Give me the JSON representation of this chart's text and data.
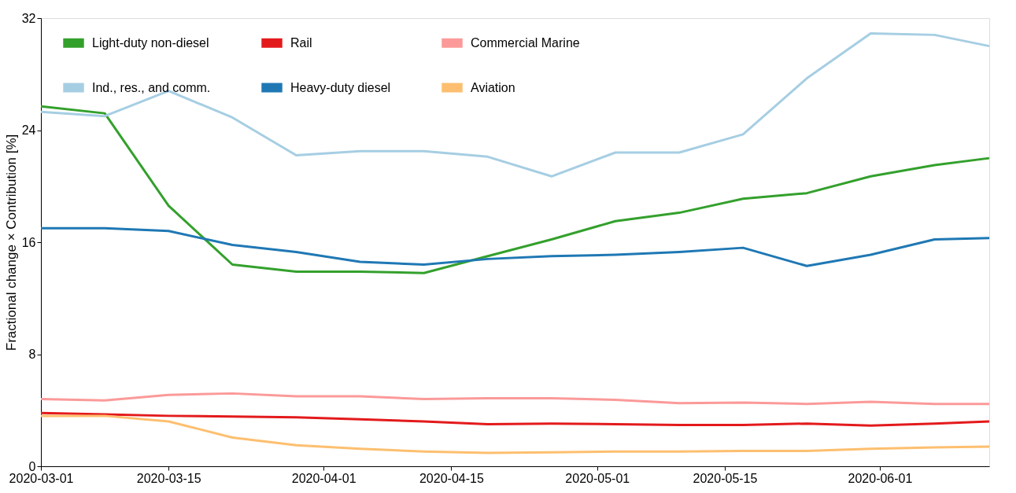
{
  "chart_data": {
    "type": "line",
    "ylabel": "Fractional change × Contribution [%]",
    "x": [
      "2020-03-01",
      "2020-03-08",
      "2020-03-15",
      "2020-03-22",
      "2020-03-29",
      "2020-04-05",
      "2020-04-12",
      "2020-04-19",
      "2020-04-26",
      "2020-05-03",
      "2020-05-10",
      "2020-05-17",
      "2020-05-24",
      "2020-05-31",
      "2020-06-07",
      "2020-06-13"
    ],
    "series": [
      {
        "name": "Light-duty non-diesel",
        "color": "#33a02c",
        "values": [
          25.7,
          25.2,
          18.6,
          14.4,
          13.9,
          13.9,
          13.8,
          15.0,
          16.2,
          17.5,
          18.1,
          19.1,
          19.5,
          20.7,
          21.5,
          22.0
        ]
      },
      {
        "name": "Heavy-duty diesel",
        "color": "#1f78b4",
        "values": [
          17.0,
          17.0,
          16.8,
          15.8,
          15.3,
          14.6,
          14.4,
          14.8,
          15.0,
          15.1,
          15.3,
          15.6,
          14.3,
          15.1,
          16.2,
          16.3
        ]
      },
      {
        "name": "Ind., res., and comm.",
        "color": "#a6cee3",
        "values": [
          25.3,
          25.0,
          26.8,
          24.9,
          22.2,
          22.5,
          22.5,
          22.1,
          20.7,
          22.4,
          22.4,
          23.7,
          27.7,
          30.9,
          30.8,
          30.0
        ]
      },
      {
        "name": "Commercial Marine",
        "color": "#fb9a99",
        "values": [
          4.8,
          4.7,
          5.1,
          5.2,
          5.0,
          5.0,
          4.8,
          4.85,
          4.85,
          4.75,
          4.5,
          4.55,
          4.45,
          4.6,
          4.45,
          4.45
        ]
      },
      {
        "name": "Rail",
        "color": "#e31a1c",
        "values": [
          3.8,
          3.7,
          3.6,
          3.55,
          3.5,
          3.35,
          3.2,
          3.0,
          3.05,
          3.0,
          2.95,
          2.95,
          3.05,
          2.9,
          3.05,
          3.2
        ]
      },
      {
        "name": "Aviation",
        "color": "#fdbf6f",
        "values": [
          3.6,
          3.6,
          3.2,
          2.05,
          1.5,
          1.25,
          1.05,
          0.95,
          1.0,
          1.05,
          1.05,
          1.1,
          1.1,
          1.25,
          1.35,
          1.4
        ]
      }
    ],
    "xlim": [
      "2020-03-01",
      "2020-06-13"
    ],
    "xticks": [
      "2020-03-01",
      "2020-03-15",
      "2020-04-01",
      "2020-04-15",
      "2020-05-01",
      "2020-05-15",
      "2020-06-01"
    ],
    "ylim": [
      0,
      32
    ],
    "yticks": [
      0,
      8,
      16,
      24,
      32
    ],
    "grid": false,
    "legend": "top left",
    "line_style": "solid",
    "marker": "none"
  }
}
